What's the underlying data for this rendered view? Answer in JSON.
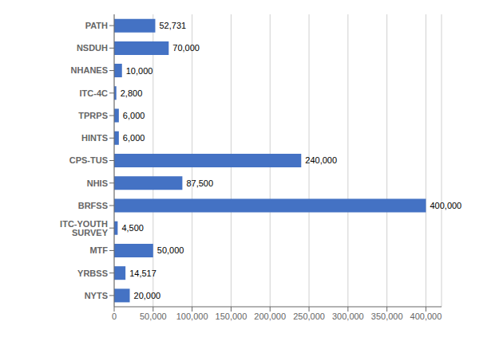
{
  "chart_data": {
    "type": "bar",
    "orientation": "horizontal",
    "categories": [
      "PATH",
      "NSDUH",
      "NHANES",
      "ITC-4C",
      "TPRPS",
      "HINTS",
      "CPS-TUS",
      "NHIS",
      "BRFSS",
      "ITC-YOUTH SURVEY",
      "MTF",
      "YRBSS",
      "NYTS"
    ],
    "values": [
      52731,
      70000,
      10000,
      2800,
      6000,
      6000,
      240000,
      87500,
      400000,
      4500,
      50000,
      14517,
      20000
    ],
    "value_labels": [
      "52,731",
      "70,000",
      "10,000",
      "2,800",
      "6,000",
      "6,000",
      "240,000",
      "87,500",
      "400,000",
      "4,500",
      "50,000",
      "14,517",
      "20,000"
    ],
    "data_labels": true,
    "color": "#4472C4",
    "xlim": [
      0,
      420000
    ],
    "xticks": [
      0,
      {
        "value": 50000,
        "label": "50,000"
      },
      {
        "value": 100000,
        "label": "100,000"
      },
      {
        "value": 150000,
        "label": "150,000"
      },
      {
        "value": 200000,
        "label": "200,000"
      },
      {
        "value": 250000,
        "label": "250,000"
      },
      {
        "value": 300000,
        "label": "300,000"
      },
      {
        "value": 350000,
        "label": "350,000"
      },
      {
        "value": 400000,
        "label": "400,000"
      }
    ],
    "grid": true
  }
}
